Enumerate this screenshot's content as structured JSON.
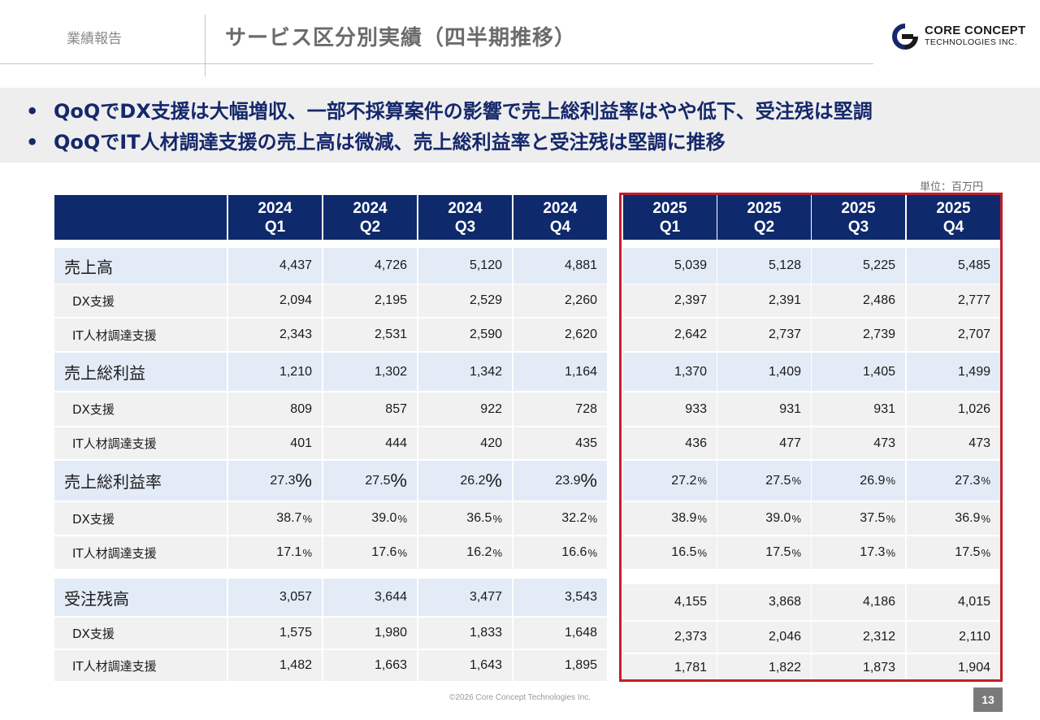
{
  "header": {
    "section_label": "業績報告",
    "title": "サービス区分別実績（四半期推移）",
    "logo": {
      "name": "CORE CONCEPT",
      "sub": "TECHNOLOGIES INC."
    }
  },
  "summary": {
    "bullets": [
      "QoQでDX支援は大幅増収、一部不採算案件の影響で売上総利益率はやや低下、受注残は堅調",
      "QoQでIT人材調達支援の売上高は微減、売上総利益率と受注残は堅調に推移"
    ]
  },
  "unit": "単位：百万円",
  "table": {
    "columns": [
      {
        "year": "2024",
        "q": "Q1"
      },
      {
        "year": "2024",
        "q": "Q2"
      },
      {
        "year": "2024",
        "q": "Q3"
      },
      {
        "year": "2024",
        "q": "Q4"
      },
      {
        "year": "2025",
        "q": "Q1"
      },
      {
        "year": "2025",
        "q": "Q2"
      },
      {
        "year": "2025",
        "q": "Q3"
      },
      {
        "year": "2025",
        "q": "Q4"
      }
    ],
    "rows": [
      {
        "label": "売上高",
        "kind": "main",
        "values": [
          "4,437",
          "4,726",
          "5,120",
          "4,881",
          "5,039",
          "5,128",
          "5,225",
          "5,485"
        ]
      },
      {
        "label": "DX支援",
        "kind": "sub",
        "values": [
          "2,094",
          "2,195",
          "2,529",
          "2,260",
          "2,397",
          "2,391",
          "2,486",
          "2,777"
        ]
      },
      {
        "label": "IT人材調達支援",
        "kind": "sub",
        "values": [
          "2,343",
          "2,531",
          "2,590",
          "2,620",
          "2,642",
          "2,737",
          "2,739",
          "2,707"
        ]
      },
      {
        "label": "売上総利益",
        "kind": "main",
        "values": [
          "1,210",
          "1,302",
          "1,342",
          "1,164",
          "1,370",
          "1,409",
          "1,405",
          "1,499"
        ]
      },
      {
        "label": "DX支援",
        "kind": "sub",
        "values": [
          "809",
          "857",
          "922",
          "728",
          "933",
          "931",
          "931",
          "1,026"
        ]
      },
      {
        "label": "IT人材調達支援",
        "kind": "sub",
        "values": [
          "401",
          "444",
          "420",
          "435",
          "436",
          "477",
          "473",
          "473"
        ]
      },
      {
        "label": "売上総利益率",
        "kind": "main",
        "pct": true,
        "values": [
          "27.3",
          "27.5",
          "26.2",
          "23.9",
          "27.2",
          "27.5",
          "26.9",
          "27.3"
        ]
      },
      {
        "label": "DX支援",
        "kind": "sub",
        "pct": true,
        "values": [
          "38.7",
          "39.0",
          "36.5",
          "32.2",
          "38.9",
          "39.0",
          "37.5",
          "36.9"
        ]
      },
      {
        "label": "IT人材調達支援",
        "kind": "sub",
        "pct": true,
        "values": [
          "17.1",
          "17.6",
          "16.2",
          "16.6",
          "16.5",
          "17.5",
          "17.3",
          "17.5"
        ]
      },
      {
        "label": "受注残高",
        "kind": "main",
        "values": [
          "3,057",
          "3,644",
          "3,477",
          "3,543",
          "4,155",
          "3,868",
          "4,186",
          "4,015"
        ]
      },
      {
        "label": "DX支援",
        "kind": "sub",
        "values": [
          "1,575",
          "1,980",
          "1,833",
          "1,648",
          "2,373",
          "2,046",
          "2,312",
          "2,110"
        ]
      },
      {
        "label": "IT人材調達支援",
        "kind": "sub",
        "values": [
          "1,482",
          "1,663",
          "1,643",
          "1,895",
          "1,781",
          "1,822",
          "1,873",
          "1,904"
        ]
      }
    ],
    "pct_symbol": "%"
  },
  "footer": {
    "copyright": "©2026 Core Concept Technologies Inc.",
    "page": "13"
  },
  "colors": {
    "header_bg": "#0f2a6c",
    "main_row_bg": "#e3ebf7",
    "sub_row_bg": "#f1f1f1",
    "highlight": "#c0202a",
    "bullet_text": "#15286b"
  }
}
